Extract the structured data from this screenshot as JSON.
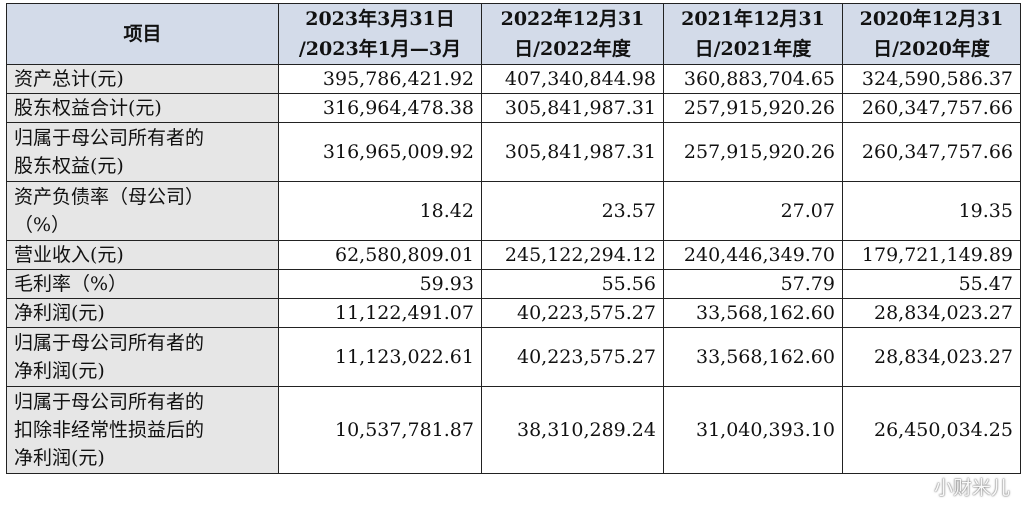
{
  "table": {
    "headers": [
      "项目",
      "2023年3月31日\n/2023年1月—3月",
      "2022年12月31\n日/2022年度",
      "2021年12月31\n日/2021年度",
      "2020年12月31\n日/2020年度"
    ],
    "rows": [
      {
        "label": "资产总计(元)",
        "values": [
          "395,786,421.92",
          "407,340,844.98",
          "360,883,704.65",
          "324,590,586.37"
        ]
      },
      {
        "label": "股东权益合计(元)",
        "values": [
          "316,964,478.38",
          "305,841,987.31",
          "257,915,920.26",
          "260,347,757.66"
        ]
      },
      {
        "label": "归属于母公司所有者的\n股东权益(元)",
        "values": [
          "316,965,009.92",
          "305,841,987.31",
          "257,915,920.26",
          "260,347,757.66"
        ]
      },
      {
        "label": "资产负债率（母公司）\n（%）",
        "values": [
          "18.42",
          "23.57",
          "27.07",
          "19.35"
        ]
      },
      {
        "label": "营业收入(元)",
        "values": [
          "62,580,809.01",
          "245,122,294.12",
          "240,446,349.70",
          "179,721,149.89"
        ]
      },
      {
        "label": "毛利率（%）",
        "values": [
          "59.93",
          "55.56",
          "57.79",
          "55.47"
        ]
      },
      {
        "label": "净利润(元)",
        "values": [
          "11,122,491.07",
          "40,223,575.27",
          "33,568,162.60",
          "28,834,023.27"
        ]
      },
      {
        "label": "归属于母公司所有者的\n净利润(元)",
        "values": [
          "11,123,022.61",
          "40,223,575.27",
          "33,568,162.60",
          "28,834,023.27"
        ]
      },
      {
        "label": "归属于母公司所有者的\n扣除非经常性损益后的\n净利润(元)",
        "values": [
          "10,537,781.87",
          "38,310,289.24",
          "31,040,393.10",
          "26,450,034.25"
        ]
      }
    ]
  },
  "watermark": "小财米儿"
}
